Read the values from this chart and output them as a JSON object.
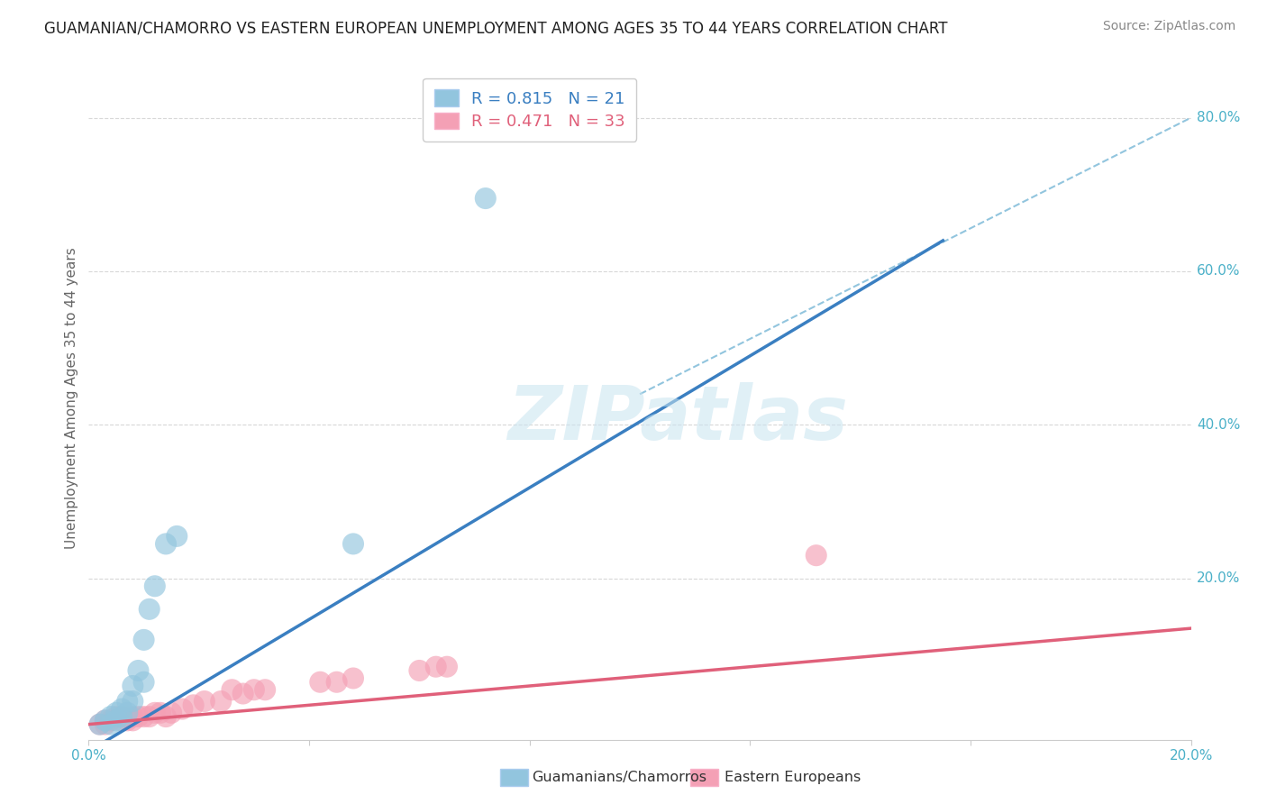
{
  "title": "GUAMANIAN/CHAMORRO VS EASTERN EUROPEAN UNEMPLOYMENT AMONG AGES 35 TO 44 YEARS CORRELATION CHART",
  "source": "Source: ZipAtlas.com",
  "ylabel": "Unemployment Among Ages 35 to 44 years",
  "ytick_labels": [
    "20.0%",
    "40.0%",
    "60.0%",
    "80.0%"
  ],
  "ytick_values": [
    0.2,
    0.4,
    0.6,
    0.8
  ],
  "xlim": [
    0.0,
    0.2
  ],
  "ylim": [
    -0.01,
    0.88
  ],
  "legend_R_blue": "0.815",
  "legend_N_blue": "21",
  "legend_R_pink": "0.471",
  "legend_N_pink": "33",
  "legend_label_blue": "Guamanians/Chamorros",
  "legend_label_pink": "Eastern Europeans",
  "blue_color": "#92c5de",
  "pink_color": "#f4a0b5",
  "blue_line_color": "#3a7fc1",
  "pink_line_color": "#e0607a",
  "dashed_line_color": "#92c5de",
  "watermark": "ZIPatlas",
  "grid_color": "#d8d8d8",
  "background_color": "#ffffff",
  "label_color": "#4ab0c8",
  "guamanian_x": [
    0.002,
    0.003,
    0.004,
    0.004,
    0.005,
    0.005,
    0.006,
    0.006,
    0.007,
    0.007,
    0.008,
    0.008,
    0.009,
    0.01,
    0.01,
    0.011,
    0.012,
    0.014,
    0.016,
    0.048,
    0.072
  ],
  "guamanian_y": [
    0.01,
    0.015,
    0.02,
    0.01,
    0.025,
    0.015,
    0.03,
    0.02,
    0.04,
    0.025,
    0.06,
    0.04,
    0.08,
    0.12,
    0.065,
    0.16,
    0.19,
    0.245,
    0.255,
    0.245,
    0.695
  ],
  "eastern_x": [
    0.002,
    0.003,
    0.003,
    0.004,
    0.005,
    0.006,
    0.006,
    0.007,
    0.007,
    0.008,
    0.008,
    0.009,
    0.01,
    0.011,
    0.012,
    0.013,
    0.014,
    0.015,
    0.017,
    0.019,
    0.021,
    0.024,
    0.026,
    0.028,
    0.03,
    0.032,
    0.042,
    0.045,
    0.048,
    0.06,
    0.063,
    0.065,
    0.132
  ],
  "eastern_y": [
    0.01,
    0.01,
    0.015,
    0.015,
    0.02,
    0.015,
    0.02,
    0.02,
    0.015,
    0.02,
    0.015,
    0.02,
    0.02,
    0.02,
    0.025,
    0.025,
    0.02,
    0.025,
    0.03,
    0.035,
    0.04,
    0.04,
    0.055,
    0.05,
    0.055,
    0.055,
    0.065,
    0.065,
    0.07,
    0.08,
    0.085,
    0.085,
    0.23
  ],
  "blue_line_x": [
    0.0,
    0.155
  ],
  "blue_line_y": [
    -0.025,
    0.64
  ],
  "pink_line_x": [
    0.0,
    0.2
  ],
  "pink_line_y": [
    0.01,
    0.135
  ],
  "dashed_line_x": [
    0.1,
    0.2
  ],
  "dashed_line_y": [
    0.44,
    0.8
  ]
}
